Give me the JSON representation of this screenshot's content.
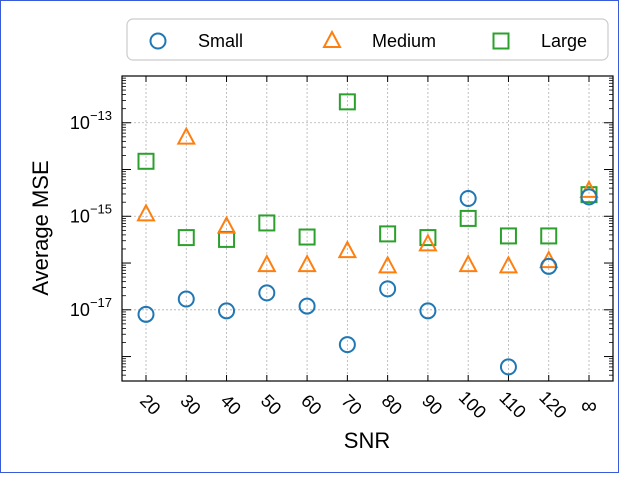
{
  "chart_data": {
    "type": "scatter",
    "xlabel": "SNR",
    "ylabel": "Average MSE",
    "categories": [
      "20",
      "30",
      "40",
      "50",
      "60",
      "70",
      "80",
      "90",
      "100",
      "110",
      "120",
      "∞"
    ],
    "y_scale": "log",
    "ylim": [
      3e-19,
      1e-12
    ],
    "y_ticks": [
      {
        "value": 1e-13,
        "mantissa": "10",
        "exponent": "−13"
      },
      {
        "value": 1e-15,
        "mantissa": "10",
        "exponent": "−15"
      },
      {
        "value": 1e-17,
        "mantissa": "10",
        "exponent": "−17"
      }
    ],
    "grid": true,
    "legend_position": "top",
    "series": [
      {
        "name": "Small",
        "marker": "circle",
        "color": "#1f77b4",
        "values": [
          8e-18,
          1.7e-17,
          9.5e-18,
          2.3e-17,
          1.2e-17,
          1.8e-18,
          2.8e-17,
          9.5e-18,
          2.4e-15,
          6e-19,
          8.5e-17,
          2.6e-15
        ]
      },
      {
        "name": "Medium",
        "marker": "triangle",
        "color": "#ff7f0e",
        "values": [
          1.1e-15,
          4.8e-14,
          6e-16,
          9e-17,
          9e-17,
          1.8e-16,
          8.5e-17,
          2.5e-16,
          9e-17,
          8.5e-17,
          1.1e-16,
          3.5e-15
        ]
      },
      {
        "name": "Large",
        "marker": "square",
        "color": "#2ca02c",
        "values": [
          1.5e-14,
          3.5e-16,
          3.2e-16,
          7.2e-16,
          3.6e-16,
          2.8e-13,
          4.2e-16,
          3.5e-16,
          9e-16,
          3.8e-16,
          3.8e-16,
          2.9e-15
        ]
      }
    ]
  }
}
